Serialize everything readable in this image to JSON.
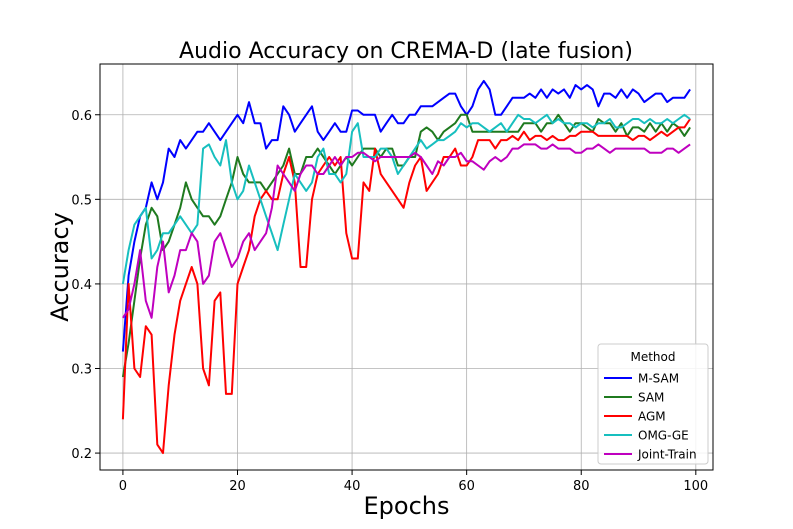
{
  "chart_data": {
    "type": "line",
    "title": "Audio Accuracy on CREMA-D (late fusion)",
    "xlabel": "Epochs",
    "ylabel": "Accuracy",
    "xlim": [
      -4,
      103
    ],
    "ylim": [
      0.18,
      0.66
    ],
    "xticks": [
      0,
      20,
      40,
      60,
      80,
      100
    ],
    "yticks": [
      0.2,
      0.3,
      0.4,
      0.5,
      0.6
    ],
    "grid": true,
    "legend": {
      "title": "Method",
      "position": "lower-right"
    },
    "series": [
      {
        "name": "M-SAM",
        "color": "#0000ff",
        "values": [
          0.32,
          0.41,
          0.45,
          0.48,
          0.49,
          0.52,
          0.5,
          0.52,
          0.56,
          0.55,
          0.57,
          0.56,
          0.57,
          0.58,
          0.58,
          0.59,
          0.58,
          0.57,
          0.58,
          0.59,
          0.6,
          0.59,
          0.615,
          0.59,
          0.59,
          0.56,
          0.57,
          0.57,
          0.61,
          0.6,
          0.58,
          0.59,
          0.6,
          0.61,
          0.58,
          0.57,
          0.58,
          0.59,
          0.58,
          0.58,
          0.605,
          0.605,
          0.6,
          0.6,
          0.6,
          0.58,
          0.59,
          0.6,
          0.59,
          0.59,
          0.6,
          0.6,
          0.61,
          0.61,
          0.61,
          0.615,
          0.62,
          0.625,
          0.625,
          0.61,
          0.6,
          0.61,
          0.63,
          0.64,
          0.63,
          0.6,
          0.6,
          0.61,
          0.62,
          0.62,
          0.62,
          0.625,
          0.62,
          0.63,
          0.62,
          0.63,
          0.625,
          0.63,
          0.62,
          0.635,
          0.63,
          0.635,
          0.63,
          0.61,
          0.625,
          0.625,
          0.62,
          0.63,
          0.62,
          0.63,
          0.625,
          0.615,
          0.62,
          0.625,
          0.625,
          0.615,
          0.62,
          0.62,
          0.62,
          0.63
        ]
      },
      {
        "name": "SAM",
        "color": "#1f7a1f",
        "values": [
          0.29,
          0.33,
          0.38,
          0.43,
          0.47,
          0.49,
          0.48,
          0.44,
          0.45,
          0.47,
          0.49,
          0.52,
          0.5,
          0.49,
          0.48,
          0.48,
          0.47,
          0.48,
          0.5,
          0.52,
          0.55,
          0.53,
          0.52,
          0.52,
          0.52,
          0.51,
          0.52,
          0.53,
          0.54,
          0.56,
          0.53,
          0.53,
          0.55,
          0.55,
          0.56,
          0.55,
          0.54,
          0.53,
          0.54,
          0.55,
          0.54,
          0.55,
          0.56,
          0.56,
          0.56,
          0.55,
          0.56,
          0.56,
          0.54,
          0.54,
          0.55,
          0.55,
          0.58,
          0.585,
          0.58,
          0.57,
          0.58,
          0.585,
          0.59,
          0.6,
          0.6,
          0.58,
          0.58,
          0.58,
          0.58,
          0.58,
          0.58,
          0.58,
          0.58,
          0.58,
          0.59,
          0.59,
          0.59,
          0.58,
          0.59,
          0.59,
          0.6,
          0.59,
          0.58,
          0.59,
          0.59,
          0.585,
          0.58,
          0.595,
          0.59,
          0.59,
          0.58,
          0.59,
          0.575,
          0.585,
          0.585,
          0.58,
          0.59,
          0.58,
          0.59,
          0.58,
          0.59,
          0.585,
          0.575,
          0.585
        ]
      },
      {
        "name": "AGM",
        "color": "#ff0000",
        "values": [
          0.24,
          0.4,
          0.3,
          0.29,
          0.35,
          0.34,
          0.21,
          0.2,
          0.28,
          0.34,
          0.38,
          0.4,
          0.42,
          0.4,
          0.3,
          0.28,
          0.38,
          0.39,
          0.27,
          0.27,
          0.4,
          0.42,
          0.44,
          0.48,
          0.5,
          0.51,
          0.5,
          0.5,
          0.53,
          0.55,
          0.52,
          0.42,
          0.42,
          0.5,
          0.53,
          0.54,
          0.55,
          0.54,
          0.55,
          0.46,
          0.43,
          0.43,
          0.52,
          0.51,
          0.56,
          0.53,
          0.52,
          0.51,
          0.5,
          0.49,
          0.52,
          0.54,
          0.55,
          0.51,
          0.52,
          0.53,
          0.55,
          0.55,
          0.56,
          0.54,
          0.54,
          0.55,
          0.57,
          0.57,
          0.57,
          0.56,
          0.57,
          0.57,
          0.575,
          0.57,
          0.58,
          0.57,
          0.575,
          0.575,
          0.57,
          0.575,
          0.57,
          0.57,
          0.575,
          0.575,
          0.58,
          0.58,
          0.58,
          0.575,
          0.575,
          0.575,
          0.575,
          0.575,
          0.575,
          0.57,
          0.575,
          0.575,
          0.57,
          0.575,
          0.58,
          0.575,
          0.58,
          0.585,
          0.585,
          0.595
        ]
      },
      {
        "name": "OMG-GE",
        "color": "#17bfbf",
        "values": [
          0.4,
          0.44,
          0.47,
          0.48,
          0.49,
          0.43,
          0.44,
          0.46,
          0.46,
          0.47,
          0.48,
          0.47,
          0.46,
          0.47,
          0.56,
          0.565,
          0.55,
          0.54,
          0.57,
          0.52,
          0.5,
          0.51,
          0.54,
          0.52,
          0.5,
          0.48,
          0.46,
          0.44,
          0.47,
          0.5,
          0.53,
          0.52,
          0.51,
          0.52,
          0.55,
          0.56,
          0.53,
          0.53,
          0.52,
          0.53,
          0.58,
          0.59,
          0.55,
          0.55,
          0.55,
          0.56,
          0.56,
          0.55,
          0.53,
          0.54,
          0.55,
          0.56,
          0.57,
          0.56,
          0.565,
          0.57,
          0.57,
          0.575,
          0.58,
          0.59,
          0.585,
          0.59,
          0.59,
          0.585,
          0.58,
          0.585,
          0.59,
          0.58,
          0.59,
          0.6,
          0.595,
          0.595,
          0.59,
          0.595,
          0.6,
          0.59,
          0.595,
          0.59,
          0.59,
          0.585,
          0.59,
          0.59,
          0.585,
          0.59,
          0.59,
          0.595,
          0.585,
          0.585,
          0.59,
          0.595,
          0.595,
          0.59,
          0.595,
          0.59,
          0.59,
          0.595,
          0.59,
          0.595,
          0.6,
          0.595
        ]
      },
      {
        "name": "Joint-Train",
        "color": "#bf00bf",
        "values": [
          0.36,
          0.37,
          0.4,
          0.44,
          0.38,
          0.36,
          0.42,
          0.45,
          0.39,
          0.41,
          0.44,
          0.44,
          0.46,
          0.45,
          0.4,
          0.41,
          0.45,
          0.46,
          0.44,
          0.42,
          0.43,
          0.45,
          0.46,
          0.44,
          0.45,
          0.46,
          0.49,
          0.54,
          0.53,
          0.52,
          0.51,
          0.53,
          0.54,
          0.54,
          0.53,
          0.53,
          0.54,
          0.55,
          0.54,
          0.55,
          0.55,
          0.555,
          0.555,
          0.55,
          0.545,
          0.55,
          0.55,
          0.55,
          0.55,
          0.55,
          0.55,
          0.555,
          0.55,
          0.54,
          0.53,
          0.545,
          0.54,
          0.55,
          0.55,
          0.555,
          0.545,
          0.545,
          0.54,
          0.535,
          0.545,
          0.55,
          0.545,
          0.55,
          0.56,
          0.56,
          0.565,
          0.565,
          0.565,
          0.56,
          0.56,
          0.565,
          0.56,
          0.56,
          0.56,
          0.555,
          0.555,
          0.56,
          0.56,
          0.565,
          0.56,
          0.555,
          0.56,
          0.56,
          0.56,
          0.56,
          0.56,
          0.56,
          0.555,
          0.555,
          0.555,
          0.56,
          0.56,
          0.555,
          0.56,
          0.565
        ]
      }
    ]
  }
}
